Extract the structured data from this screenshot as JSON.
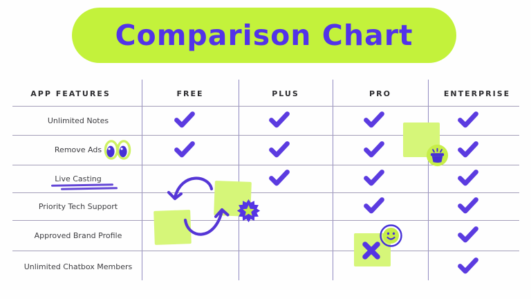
{
  "header": {
    "title": "Comparison Chart"
  },
  "chart_data": {
    "type": "table",
    "title": "Comparison Chart",
    "columns": [
      "APP FEATURES",
      "FREE",
      "PLUS",
      "PRO",
      "ENTERPRISE"
    ],
    "plan_keys": [
      "free",
      "plus",
      "pro",
      "enterprise"
    ],
    "rows": [
      {
        "feature": "Unlimited Notes",
        "free": true,
        "plus": true,
        "pro": true,
        "enterprise": true
      },
      {
        "feature": "Remove Ads",
        "free": true,
        "plus": true,
        "pro": true,
        "enterprise": true
      },
      {
        "feature": "Live Casting",
        "free": false,
        "plus": true,
        "pro": true,
        "enterprise": true
      },
      {
        "feature": "Priority Tech Support",
        "free": false,
        "plus": false,
        "pro": true,
        "enterprise": true
      },
      {
        "feature": "Approved Brand Profile",
        "free": false,
        "plus": false,
        "pro": false,
        "enterprise": true
      },
      {
        "feature": "Unlimited Chatbox Members",
        "free": false,
        "plus": false,
        "pro": false,
        "enterprise": true
      }
    ],
    "legend_position": "none",
    "grid": true
  },
  "decorations": {
    "eyes_icon": "googly-eyes next to Remove Ads",
    "underlined_feature": "Live Casting",
    "swap_arrows_icon": "circular swap arrows between two sticky notes in FREE/PLUS area",
    "sticky_note_count": 4,
    "star_badge_icon": "purple burst badge with lime star",
    "basket_icon": "lime circle sticker with purple basket",
    "smiley_icon": "lime smiley sticker with purple ring",
    "cross_mark": {
      "column": "PRO",
      "near_row": "Approved Brand Profile"
    }
  },
  "colors": {
    "pill_lime": "#c3f23b",
    "sticky_lime": "#d6f679",
    "sticker_lime": "#c7ee49",
    "title_purple": "#5233e8",
    "check_purple": "#5b3be0",
    "doodle_purple": "#5536d6",
    "grid_vertical": "#918ac1",
    "grid_horizontal": "#a39db8",
    "header_text": "#2d2d30",
    "label_text": "#3c3c40"
  }
}
